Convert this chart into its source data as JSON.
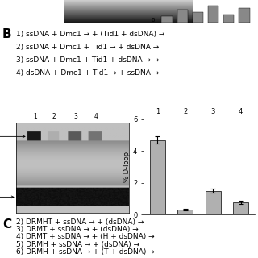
{
  "panel_B_label": "B",
  "panel_C_label": "C",
  "protocol_lines_B": [
    "1) ssDNA + Dmc1 → + (Tid1 + dsDNA) →",
    "2) ssDNA + Dmc1 + Tid1 → + dsDNA →",
    "3) ssDNA + Dmc1 + Tid1 + dsDNA → →",
    "4) dsDNA + Dmc1 + Tid1 → + ssDNA →"
  ],
  "protocol_lines_C": [
    "2) DRMHT + ssDNA → + (dsDNA) →",
    "3) DRMT + ssDNA → + (dsDNA) →",
    "4) DRMT + ssDNA → + (H + dsDNA) →",
    "5) DRMH + ssDNA → + (dsDNA) →",
    "6) DRMH + ssDNA → + (T + dsDNA) →"
  ],
  "bar_categories": [
    "1",
    "2",
    "3",
    "4"
  ],
  "bar_values": [
    4.7,
    0.3,
    1.5,
    0.75
  ],
  "bar_errors": [
    0.25,
    0.05,
    0.15,
    0.1
  ],
  "bar_color": "#b0b0b0",
  "ylabel": "% D-loop",
  "ylim": [
    0,
    6
  ],
  "yticks": [
    0,
    2,
    4,
    6
  ],
  "background_color": "#ffffff"
}
